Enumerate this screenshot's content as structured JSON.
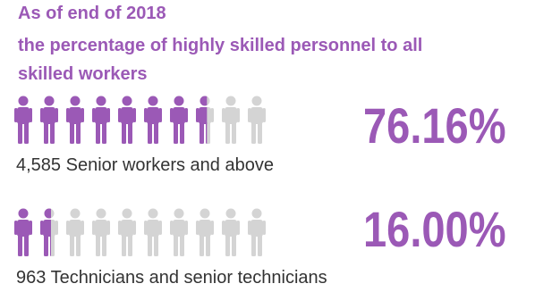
{
  "title_lines": [
    "As of end of 2018",
    "the percentage of highly skilled personnel to all",
    "skilled workers"
  ],
  "colors": {
    "accent": "#9b59b6",
    "inactive": "#d4d4d4",
    "text": "#333333"
  },
  "chart_data": [
    {
      "type": "pictogram",
      "icon": "person-icon",
      "total_icons": 10,
      "value_percent": 76.16,
      "value_label": "76.16%",
      "caption": "4,585 Senior workers and above"
    },
    {
      "type": "pictogram",
      "icon": "person-icon",
      "total_icons": 10,
      "value_percent": 16.0,
      "value_label": "16.00%",
      "caption": "963 Technicians and senior technicians"
    }
  ]
}
